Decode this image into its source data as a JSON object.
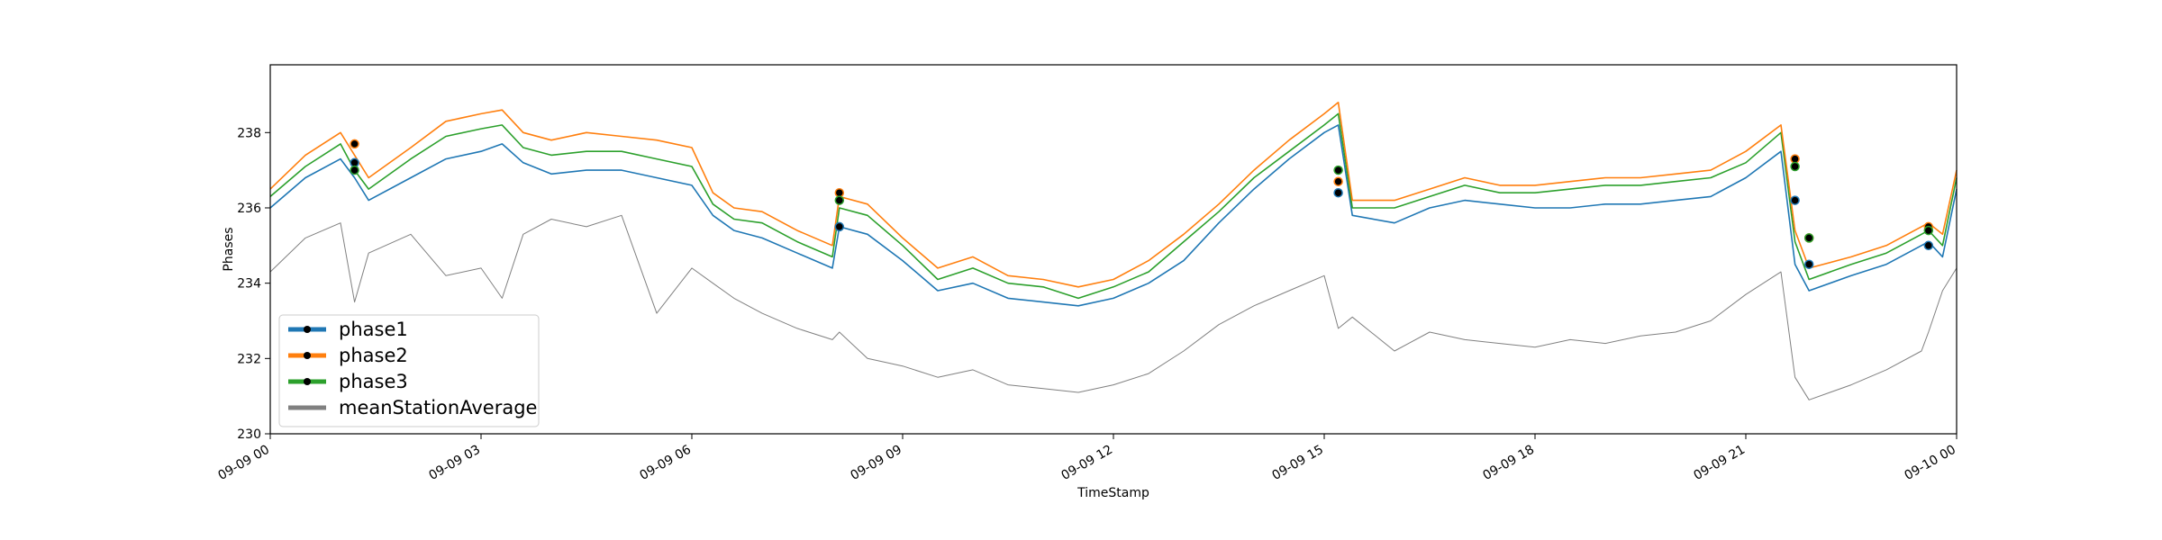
{
  "chart_data": {
    "type": "line",
    "title": "",
    "xlabel": "TimeStamp",
    "ylabel": "Phases",
    "x_ticks": [
      "09-09 00",
      "09-09 03",
      "09-09 06",
      "09-09 09",
      "09-09 12",
      "09-09 15",
      "09-09 18",
      "09-09 21",
      "09-10 00"
    ],
    "x_tick_hours": [
      0,
      3,
      6,
      9,
      12,
      15,
      18,
      21,
      24
    ],
    "xlim_hours": [
      0,
      24
    ],
    "y_ticks": [
      230,
      232,
      234,
      236,
      238
    ],
    "ylim": [
      230,
      239.8
    ],
    "grid": false,
    "legend_position": "lower-left",
    "colors": {
      "phase1": "#1f77b4",
      "phase2": "#ff7f0e",
      "phase3": "#2ca02c",
      "meanStationAverage": "#808080",
      "marker": "#000000"
    },
    "hours": [
      0,
      0.5,
      1,
      1.2,
      1.4,
      2,
      2.5,
      3,
      3.3,
      3.6,
      4,
      4.5,
      5,
      5.5,
      6,
      6.3,
      6.6,
      7,
      7.5,
      8,
      8.1,
      8.5,
      9,
      9.5,
      10,
      10.5,
      11,
      11.5,
      12,
      12.5,
      13,
      13.5,
      14,
      14.5,
      15,
      15.2,
      15.4,
      16,
      16.5,
      17,
      17.5,
      18,
      18.5,
      19,
      19.5,
      20,
      20.5,
      21,
      21.5,
      21.7,
      21.9,
      22.5,
      23,
      23.5,
      23.6,
      23.8,
      24
    ],
    "series": [
      {
        "name": "phase1",
        "values": [
          236,
          236.8,
          237.3,
          236.8,
          236.2,
          236.8,
          237.3,
          237.5,
          237.7,
          237.2,
          236.9,
          237,
          237,
          236.8,
          236.6,
          235.8,
          235.4,
          235.2,
          234.8,
          234.4,
          235.5,
          235.3,
          234.6,
          233.8,
          234,
          233.6,
          233.5,
          233.4,
          233.6,
          234,
          234.6,
          235.6,
          236.5,
          237.3,
          238,
          238.2,
          235.8,
          235.6,
          236,
          236.2,
          236.1,
          236,
          236,
          236.1,
          236.1,
          236.2,
          236.3,
          236.8,
          237.5,
          234.5,
          233.8,
          234.2,
          234.5,
          235,
          235.1,
          234.7,
          236.5
        ]
      },
      {
        "name": "phase2",
        "values": [
          236.5,
          237.4,
          238,
          237.4,
          236.8,
          237.6,
          238.3,
          238.5,
          238.6,
          238,
          237.8,
          238,
          237.9,
          237.8,
          237.6,
          236.4,
          236,
          235.9,
          235.4,
          235,
          236.3,
          236.1,
          235.2,
          234.4,
          234.7,
          234.2,
          234.1,
          233.9,
          234.1,
          234.6,
          235.3,
          236.1,
          237,
          237.8,
          238.5,
          238.8,
          236.2,
          236.2,
          236.5,
          236.8,
          236.6,
          236.6,
          236.7,
          236.8,
          236.8,
          236.9,
          237,
          237.5,
          238.2,
          235.4,
          234.4,
          234.7,
          235,
          235.5,
          235.6,
          235.3,
          237
        ]
      },
      {
        "name": "phase3",
        "values": [
          236.3,
          237.1,
          237.7,
          237,
          236.5,
          237.3,
          237.9,
          238.1,
          238.2,
          237.6,
          237.4,
          237.5,
          237.5,
          237.3,
          237.1,
          236.1,
          235.7,
          235.6,
          235.1,
          234.7,
          236,
          235.8,
          235,
          234.1,
          234.4,
          234,
          233.9,
          233.6,
          233.9,
          234.3,
          235.1,
          235.9,
          236.8,
          237.5,
          238.2,
          238.5,
          236,
          236,
          236.3,
          236.6,
          236.4,
          236.4,
          236.5,
          236.6,
          236.6,
          236.7,
          236.8,
          237.2,
          238,
          235.1,
          234.1,
          234.5,
          234.8,
          235.3,
          235.4,
          235,
          236.8
        ]
      },
      {
        "name": "meanStationAverage",
        "values": [
          234.3,
          235.2,
          235.6,
          233.5,
          234.8,
          235.3,
          234.2,
          234.4,
          233.6,
          235.3,
          235.7,
          235.5,
          235.8,
          233.2,
          234.4,
          234,
          233.6,
          233.2,
          232.8,
          232.5,
          232.7,
          232,
          231.8,
          231.5,
          231.7,
          231.3,
          231.2,
          231.1,
          231.3,
          231.6,
          232.2,
          232.9,
          233.4,
          233.8,
          234.2,
          232.8,
          233.1,
          232.2,
          232.7,
          232.5,
          232.4,
          232.3,
          232.5,
          232.4,
          232.6,
          232.7,
          233,
          233.7,
          234.3,
          231.5,
          230.9,
          231.3,
          231.7,
          232.2,
          232.7,
          233.8,
          234.4
        ]
      }
    ],
    "markers": [
      {
        "series": "phase1",
        "points": [
          [
            1.2,
            237.2
          ],
          [
            8.1,
            235.5
          ],
          [
            15.2,
            236.4
          ],
          [
            21.7,
            236.2
          ],
          [
            21.9,
            234.5
          ],
          [
            23.6,
            235
          ]
        ]
      },
      {
        "series": "phase2",
        "points": [
          [
            1.2,
            237.7
          ],
          [
            8.1,
            236.4
          ],
          [
            15.2,
            236.7
          ],
          [
            21.7,
            237.3
          ],
          [
            21.9,
            235.2
          ],
          [
            23.6,
            235.5
          ]
        ]
      },
      {
        "series": "phase3",
        "points": [
          [
            1.2,
            237
          ],
          [
            8.1,
            236.2
          ],
          [
            15.2,
            237
          ],
          [
            21.7,
            237.1
          ],
          [
            21.9,
            235.2
          ],
          [
            23.6,
            235.4
          ]
        ]
      }
    ]
  }
}
